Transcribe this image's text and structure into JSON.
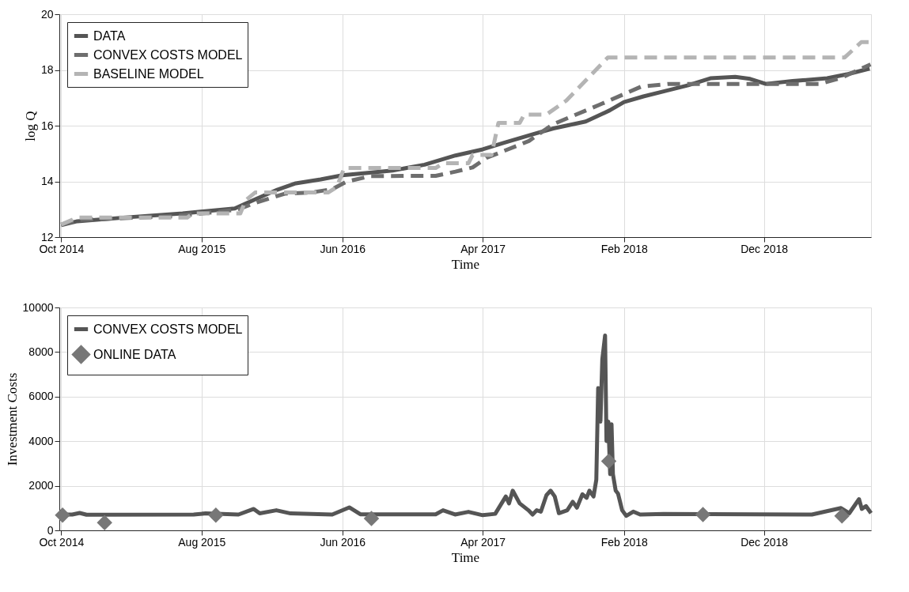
{
  "chart_data": [
    {
      "type": "line",
      "xlabel": "Time",
      "ylabel": "log Q",
      "xlim": [
        "2014-09-27",
        "2019-07-21"
      ],
      "xticks": [
        {
          "value": "2014-10-01",
          "label": "Oct 2014"
        },
        {
          "value": "2015-08-01",
          "label": "Aug 2015"
        },
        {
          "value": "2016-06-01",
          "label": "Jun 2016"
        },
        {
          "value": "2017-04-01",
          "label": "Apr 2017"
        },
        {
          "value": "2018-02-01",
          "label": "Feb 2018"
        },
        {
          "value": "2018-12-01",
          "label": "Dec 2018"
        }
      ],
      "ylim": [
        12,
        20
      ],
      "yticks": [
        12,
        14,
        16,
        18,
        20
      ],
      "grid": true,
      "legend": "top left",
      "series": [
        {
          "name": "DATA",
          "color": "#555555",
          "line_style": "solid",
          "x": [
            "2014-10-01",
            "2014-11-05",
            "2015-03-01",
            "2015-06-21",
            "2015-10-12",
            "2015-11-27",
            "2016-01-12",
            "2016-02-21",
            "2016-04-15",
            "2016-06-01",
            "2016-09-18",
            "2016-11-26",
            "2017-02-01",
            "2017-04-01",
            "2017-05-20",
            "2017-07-20",
            "2017-09-01",
            "2017-11-10",
            "2018-01-01",
            "2018-02-01",
            "2018-03-15",
            "2018-05-03",
            "2018-06-20",
            "2018-08-07",
            "2018-09-30",
            "2018-11-01",
            "2018-12-05",
            "2019-02-01",
            "2019-04-17",
            "2019-06-01",
            "2019-07-18"
          ],
          "values": [
            12.43,
            12.57,
            12.72,
            12.85,
            13.03,
            13.37,
            13.7,
            13.93,
            14.07,
            14.22,
            14.39,
            14.6,
            14.93,
            15.15,
            15.4,
            15.7,
            15.9,
            16.15,
            16.55,
            16.85,
            17.05,
            17.25,
            17.45,
            17.7,
            17.75,
            17.68,
            17.5,
            17.6,
            17.7,
            17.85,
            18.05
          ]
        },
        {
          "name": "CONVEX COSTS MODEL",
          "color": "#6e6e6e",
          "line_style": "dashed",
          "x": [
            "2014-10-01",
            "2014-11-10",
            "2015-06-01",
            "2015-09-01",
            "2015-10-20",
            "2015-11-24",
            "2016-01-28",
            "2016-03-25",
            "2016-05-10",
            "2016-06-10",
            "2016-08-01",
            "2016-12-20",
            "2017-02-01",
            "2017-03-10",
            "2017-04-10",
            "2017-07-10",
            "2017-08-31",
            "2017-12-10",
            "2018-03-10",
            "2018-05-10",
            "2019-04-01",
            "2019-05-15",
            "2019-07-20"
          ],
          "values": [
            12.45,
            12.62,
            12.75,
            12.9,
            13.0,
            13.22,
            13.56,
            13.6,
            13.72,
            13.99,
            14.19,
            14.2,
            14.35,
            14.5,
            14.85,
            15.45,
            16.05,
            16.75,
            17.4,
            17.5,
            17.5,
            17.7,
            18.2
          ]
        },
        {
          "name": "BASELINE MODEL",
          "color": "#b4b4b4",
          "line_style": "dashed",
          "x": [
            "2014-10-01",
            "2014-11-05",
            "2015-07-01",
            "2015-07-13",
            "2015-10-24",
            "2015-11-05",
            "2015-11-25",
            "2016-05-01",
            "2016-05-20",
            "2016-06-05",
            "2016-12-20",
            "2017-01-05",
            "2017-03-01",
            "2017-03-10",
            "2017-04-20",
            "2017-05-05",
            "2017-06-20",
            "2017-06-30",
            "2017-08-17",
            "2017-09-29",
            "2017-12-28",
            "2019-05-25",
            "2019-06-30",
            "2019-07-20"
          ],
          "values": [
            12.45,
            12.7,
            12.7,
            12.85,
            12.85,
            13.33,
            13.6,
            13.6,
            13.8,
            14.48,
            14.48,
            14.65,
            14.65,
            14.95,
            14.95,
            16.1,
            16.1,
            16.4,
            16.4,
            16.9,
            18.45,
            18.45,
            19.0,
            19.0
          ]
        }
      ]
    },
    {
      "type": "line",
      "xlabel": "Time",
      "ylabel": "Investment Costs",
      "xlim": [
        "2014-09-27",
        "2019-07-21"
      ],
      "xticks": [
        {
          "value": "2014-10-01",
          "label": "Oct 2014"
        },
        {
          "value": "2015-08-01",
          "label": "Aug 2015"
        },
        {
          "value": "2016-06-01",
          "label": "Jun 2016"
        },
        {
          "value": "2017-04-01",
          "label": "Apr 2017"
        },
        {
          "value": "2018-02-01",
          "label": "Feb 2018"
        },
        {
          "value": "2018-12-01",
          "label": "Dec 2018"
        }
      ],
      "ylim": [
        0,
        10000
      ],
      "yticks": [
        0,
        2000,
        4000,
        6000,
        8000,
        10000
      ],
      "grid": true,
      "legend": "top left",
      "series": [
        {
          "name": "CONVEX COSTS MODEL",
          "color": "#555555",
          "line_style": "solid",
          "x": [
            "2014-10-01",
            "2014-10-25",
            "2014-11-10",
            "2014-11-25",
            "2015-07-15",
            "2015-08-10",
            "2015-10-20",
            "2015-11-22",
            "2015-12-05",
            "2016-01-10",
            "2016-02-10",
            "2016-05-10",
            "2016-06-16",
            "2016-07-10",
            "2016-12-20",
            "2017-01-05",
            "2017-01-31",
            "2017-03-01",
            "2017-04-01",
            "2017-04-28",
            "2017-05-21",
            "2017-05-28",
            "2017-06-05",
            "2017-06-20",
            "2017-07-09",
            "2017-07-18",
            "2017-07-27",
            "2017-08-05",
            "2017-08-17",
            "2017-08-26",
            "2017-09-04",
            "2017-09-13",
            "2017-10-01",
            "2017-10-13",
            "2017-10-22",
            "2017-11-03",
            "2017-11-12",
            "2017-11-18",
            "2017-11-27",
            "2017-12-03",
            "2017-12-07",
            "2017-12-12",
            "2017-12-16",
            "2017-12-22",
            "2017-12-25",
            "2017-12-29",
            "2018-01-02",
            "2018-01-05",
            "2018-01-08",
            "2018-01-14",
            "2018-01-19",
            "2018-01-28",
            "2018-02-06",
            "2018-02-21",
            "2018-03-08",
            "2018-04-28",
            "2019-03-15",
            "2019-05-17",
            "2019-06-04",
            "2019-06-25",
            "2019-07-01",
            "2019-07-10",
            "2019-07-21"
          ],
          "values": [
            710,
            710,
            780,
            700,
            710,
            760,
            710,
            960,
            760,
            900,
            760,
            710,
            1030,
            720,
            720,
            900,
            710,
            830,
            680,
            740,
            1520,
            1210,
            1780,
            1210,
            900,
            710,
            900,
            840,
            1580,
            1780,
            1520,
            770,
            900,
            1280,
            1020,
            1620,
            1460,
            1780,
            1520,
            2270,
            6380,
            4880,
            7680,
            8740,
            4010,
            4880,
            2520,
            4760,
            2520,
            1780,
            1650,
            900,
            650,
            840,
            710,
            740,
            710,
            1000,
            770,
            1400,
            960,
            1090,
            770
          ]
        },
        {
          "name": "ONLINE DATA",
          "type": "scatter",
          "marker": "diamond",
          "color": "#777777",
          "x": [
            "2014-10-04",
            "2015-01-03",
            "2015-09-01",
            "2016-08-03",
            "2017-12-30",
            "2018-07-22",
            "2019-05-19"
          ],
          "values": [
            680,
            350,
            680,
            530,
            3100,
            710,
            650
          ]
        }
      ]
    }
  ]
}
